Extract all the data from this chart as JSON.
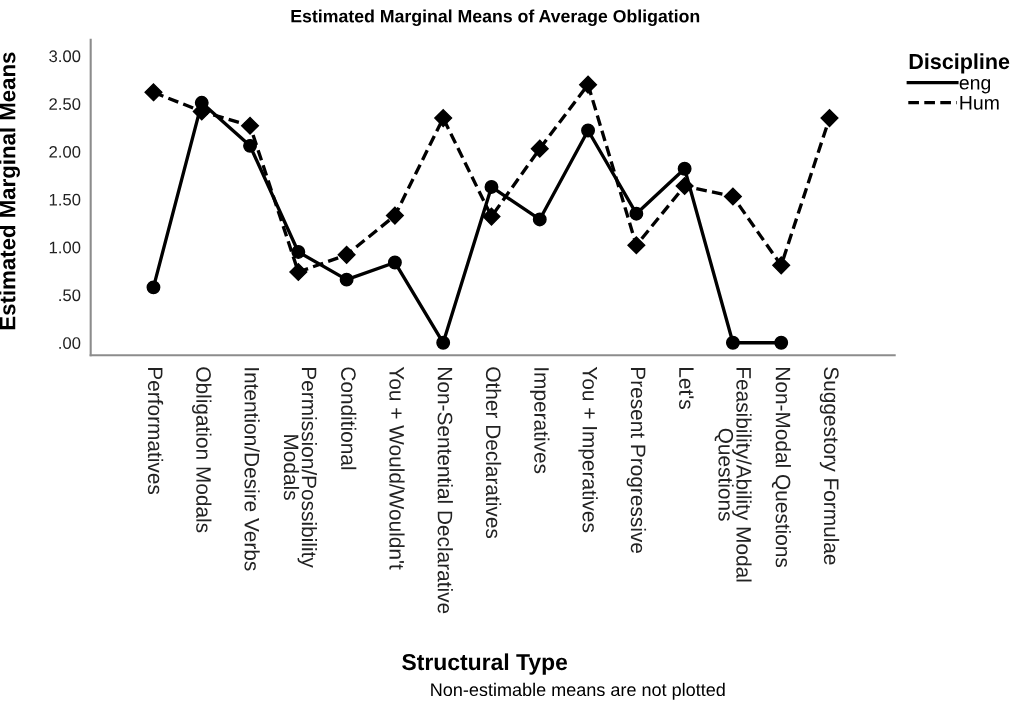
{
  "chart_data": {
    "type": "line",
    "title": "Estimated Marginal Means of Average Obligation",
    "xlabel": "Structural Type",
    "ylabel": "Estimated Marginal Means",
    "legend_title": "Discipline",
    "annotations": [
      "Non-estimable means are not plotted"
    ],
    "categories": [
      "Performatives",
      "Obligation Modals",
      "Intention/Desire Verbs",
      "Permission/Possibility\nModals",
      "Conditional",
      "You + Would/Wouldn't",
      "Non-Sentential Declarative",
      "Other Declaratives",
      "Imperatives",
      "You + Imperatives",
      "Present Progressive",
      "Let's",
      "Feasibility/Ability Modal\nQuestions",
      "Non-Modal Questions",
      "Suggestory Formulae"
    ],
    "series": [
      {
        "name": "eng",
        "color": "#000000",
        "marker": "circle",
        "line_style": "solid",
        "values": [
          0.58,
          2.51,
          2.06,
          0.95,
          0.66,
          0.84,
          0.0,
          1.63,
          1.29,
          2.22,
          1.35,
          1.82,
          0.0,
          0.0,
          null
        ]
      },
      {
        "name": "Hum",
        "color": "#000000",
        "marker": "diamond",
        "line_style": "dashed",
        "values": [
          2.62,
          2.42,
          2.27,
          0.74,
          0.92,
          1.33,
          2.35,
          1.32,
          2.03,
          2.7,
          1.02,
          1.64,
          1.53,
          0.81,
          2.35
        ]
      }
    ],
    "ylim": [
      -0.13,
      3.17
    ],
    "yticks": [
      {
        "value": 0,
        "label": ".00"
      },
      {
        "value": 0.5,
        "label": ".50"
      },
      {
        "value": 1,
        "label": "1.00"
      },
      {
        "value": 1.5,
        "label": "1.50"
      },
      {
        "value": 2,
        "label": "2.00"
      },
      {
        "value": 2.5,
        "label": "2.50"
      },
      {
        "value": 3,
        "label": "3.00"
      }
    ],
    "grid": false,
    "legend": "top right"
  }
}
